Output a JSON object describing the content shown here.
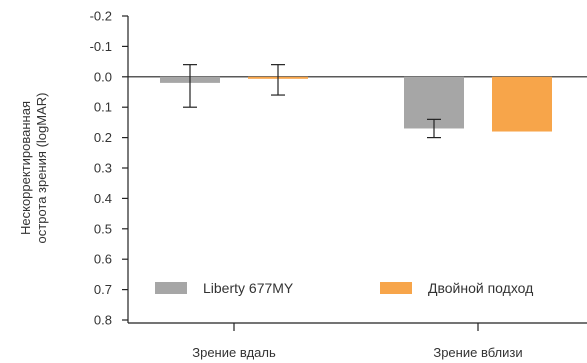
{
  "chart_data": {
    "type": "bar",
    "ylabel_lines": [
      "Нескорректированная",
      "острота зрения (logMAR)"
    ],
    "categories": [
      "Зрение вдаль",
      "Зрение вблизи"
    ],
    "ylim": [
      -0.2,
      0.8
    ],
    "y_inverted": true,
    "yticks": [
      "-0.2",
      "-0.1",
      "0.0",
      "0.1",
      "0.2",
      "0.3",
      "0.4",
      "0.5",
      "0.6",
      "0.7",
      "0.8"
    ],
    "ytick_values": [
      -0.2,
      -0.1,
      0.0,
      0.1,
      0.2,
      0.3,
      0.4,
      0.5,
      0.6,
      0.7,
      0.8
    ],
    "series": [
      {
        "name": "Liberty 677MY",
        "color": "#a6a6a6",
        "values": [
          0.02,
          0.17
        ],
        "error": [
          [
            -0.04,
            0.1
          ],
          [
            0.14,
            0.2
          ]
        ]
      },
      {
        "name": "Двойной подход",
        "color": "#f7a54a",
        "values": [
          0.0,
          0.18
        ],
        "error": [
          [
            -0.04,
            0.06
          ],
          null
        ]
      }
    ],
    "legend_position": "bottom-inside",
    "grid": false
  }
}
